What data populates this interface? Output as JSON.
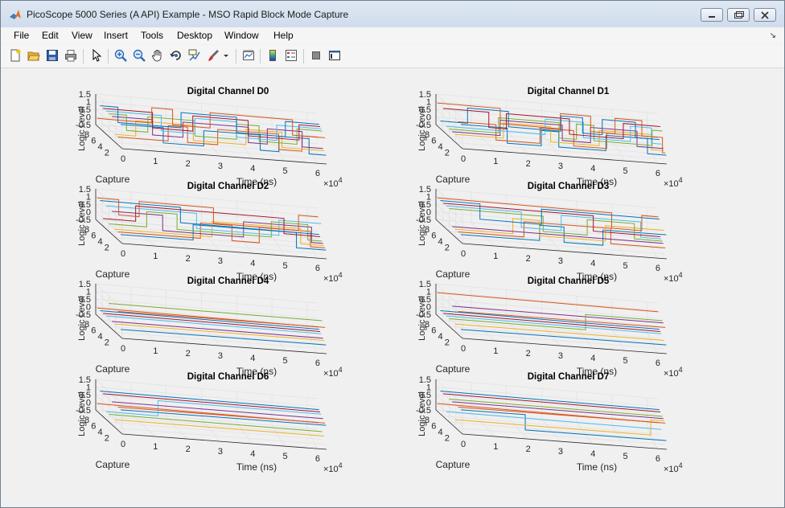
{
  "window": {
    "title": "PicoScope 5000 Series (A API) Example - MSO Rapid Block Mode Capture",
    "menu": [
      "File",
      "Edit",
      "View",
      "Insert",
      "Tools",
      "Desktop",
      "Window",
      "Help"
    ]
  },
  "toolbar": {
    "icons": [
      "new-figure-icon",
      "open-icon",
      "save-icon",
      "print-icon",
      "pointer-icon",
      "zoom-in-icon",
      "zoom-out-icon",
      "pan-icon",
      "rotate-3d-icon",
      "data-cursor-icon",
      "brush-icon",
      "brush-dropdown-icon",
      "link-plot-icon",
      "colorbar-icon",
      "legend-icon",
      "hide-plot-tools-icon",
      "show-plot-tools-icon"
    ]
  },
  "axes_labels": {
    "ylabel": "Logic Level",
    "xlabel": "Time (ns)",
    "zlabel": "Capture",
    "exponent_base": "×10",
    "exponent_power": "4"
  },
  "tick_labels": {
    "z": [
      "1.5",
      "1",
      "0.5",
      "0",
      "-0.5"
    ],
    "capture": [
      "8",
      "6",
      "4",
      "2"
    ],
    "time": [
      "0",
      "1",
      "2",
      "3",
      "4",
      "5",
      "6"
    ]
  },
  "series_colors": [
    "#0072bd",
    "#d95319",
    "#edb120",
    "#7e2f8e",
    "#77ac30",
    "#4dbeee",
    "#a2142f",
    "#0072bd",
    "#d95319"
  ],
  "chart_data": [
    {
      "type": "line",
      "title": "Digital Channel D0",
      "xlabel": "Time (ns)",
      "ylabel": "Logic Level",
      "zlabel": "Capture",
      "xlim": [
        0,
        60000
      ],
      "ylim": [
        1,
        9
      ],
      "zlim": [
        -0.5,
        1.5
      ]
    },
    {
      "type": "line",
      "title": "Digital Channel D1",
      "xlabel": "Time (ns)",
      "ylabel": "Logic Level",
      "zlabel": "Capture",
      "xlim": [
        0,
        60000
      ],
      "ylim": [
        1,
        9
      ],
      "zlim": [
        -0.5,
        1.5
      ]
    },
    {
      "type": "line",
      "title": "Digital Channel D2",
      "xlabel": "Time (ns)",
      "ylabel": "Logic Level",
      "zlabel": "Capture",
      "xlim": [
        0,
        60000
      ],
      "ylim": [
        1,
        9
      ],
      "zlim": [
        -0.5,
        1.5
      ]
    },
    {
      "type": "line",
      "title": "Digital Channel D3",
      "xlabel": "Time (ns)",
      "ylabel": "Logic Level",
      "zlabel": "Capture",
      "xlim": [
        0,
        60000
      ],
      "ylim": [
        1,
        9
      ],
      "zlim": [
        -0.5,
        1.5
      ]
    },
    {
      "type": "line",
      "title": "Digital Channel D4",
      "xlabel": "Time (ns)",
      "ylabel": "Logic Level",
      "zlabel": "Capture",
      "xlim": [
        0,
        60000
      ],
      "ylim": [
        1,
        9
      ],
      "zlim": [
        -0.5,
        1.5
      ]
    },
    {
      "type": "line",
      "title": "Digital Channel D5",
      "xlabel": "Time (ns)",
      "ylabel": "Logic Level",
      "zlabel": "Capture",
      "xlim": [
        0,
        60000
      ],
      "ylim": [
        1,
        9
      ],
      "zlim": [
        -0.5,
        1.5
      ]
    },
    {
      "type": "line",
      "title": "Digital Channel D6",
      "xlabel": "Time (ns)",
      "ylabel": "Logic Level",
      "zlabel": "Capture",
      "xlim": [
        0,
        60000
      ],
      "ylim": [
        1,
        9
      ],
      "zlim": [
        -0.5,
        1.5
      ]
    },
    {
      "type": "line",
      "title": "Digital Channel D7",
      "xlabel": "Time (ns)",
      "ylabel": "Logic Level",
      "zlabel": "Capture",
      "xlim": [
        0,
        60000
      ],
      "ylim": [
        1,
        9
      ],
      "zlim": [
        -0.5,
        1.5
      ]
    }
  ]
}
